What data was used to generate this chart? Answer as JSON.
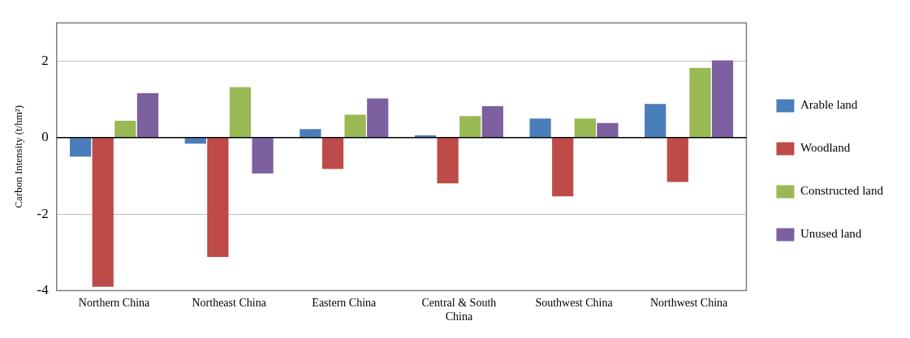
{
  "chart_data": {
    "type": "bar",
    "ylabel": "Carbon Intensity (t/hm²)",
    "categories": [
      "Northern China",
      "Northeast China",
      "Eastern China",
      "Central & South China",
      "Southwest China",
      "Northwest China"
    ],
    "series": [
      {
        "name": "Arable land",
        "color": "#4a7ebb",
        "values": [
          -0.5,
          -0.16,
          0.22,
          0.06,
          0.5,
          0.88
        ]
      },
      {
        "name": "Woodland",
        "color": "#be4b48",
        "values": [
          -3.9,
          -3.12,
          -0.82,
          -1.2,
          -1.54,
          -1.16
        ]
      },
      {
        "name": "Constructed land",
        "color": "#98b954",
        "values": [
          0.44,
          1.32,
          0.6,
          0.56,
          0.5,
          1.82
        ]
      },
      {
        "name": "Unused land",
        "color": "#7d60a0",
        "values": [
          1.16,
          -0.94,
          1.02,
          0.82,
          0.38,
          2.02
        ]
      }
    ],
    "ylim": [
      -4,
      3
    ],
    "yticks": [
      -4,
      -2,
      0,
      2
    ],
    "grid": "y",
    "legend": "right"
  }
}
